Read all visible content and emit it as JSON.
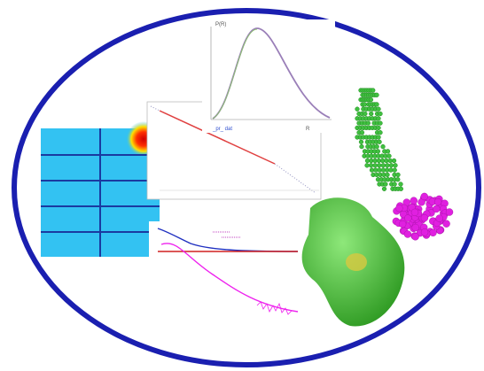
{
  "plots": {
    "distance_distribution": {
      "y_label": "P(R)",
      "x_label": "R",
      "legend": "_pr_ dat"
    }
  }
}
